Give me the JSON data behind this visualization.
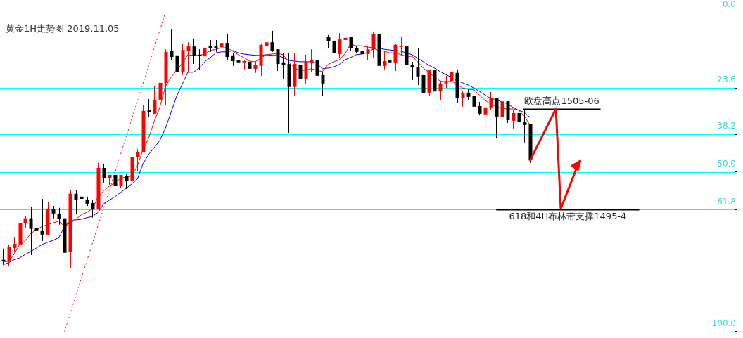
{
  "chart_data": {
    "type": "candlestick",
    "title": "黄金1H走势图 2019.11.05",
    "categories": [
      null,
      null,
      null,
      null,
      null,
      null,
      null,
      null,
      null,
      null,
      null,
      null,
      null,
      null,
      null,
      null,
      null,
      null,
      null,
      null,
      null,
      null,
      null,
      null,
      null,
      null,
      null,
      null,
      null,
      null,
      null,
      null,
      null,
      null,
      null,
      null,
      null,
      null,
      null,
      null,
      null,
      null,
      null,
      null,
      null,
      null,
      null,
      null,
      null,
      null,
      null,
      null,
      null,
      null,
      null,
      null,
      null,
      null,
      null,
      null,
      null,
      null,
      null,
      null,
      null,
      null,
      null,
      null,
      null,
      null,
      null,
      null,
      null,
      null,
      null,
      null,
      null,
      null,
      null,
      null,
      null,
      null,
      null,
      null,
      null,
      null,
      null,
      null,
      null,
      null,
      null,
      null,
      null,
      null,
      null
    ],
    "ohlc": [
      [
        77.5,
        78.9,
        74.0,
        78.0
      ],
      [
        78.0,
        79.5,
        72.7,
        73.6
      ],
      [
        73.8,
        75.3,
        70.3,
        72.5
      ],
      [
        72.7,
        76.9,
        63.7,
        66.1
      ],
      [
        66.1,
        67.4,
        63.7,
        64.5
      ],
      [
        64.5,
        76.0,
        61.0,
        67.8
      ],
      [
        67.6,
        75.6,
        64.5,
        68.5
      ],
      [
        68.5,
        71.6,
        58.4,
        69.6
      ],
      [
        69.6,
        69.6,
        59.3,
        61.5
      ],
      [
        61.5,
        64.5,
        60.6,
        63.0
      ],
      [
        63.0,
        66.5,
        61.2,
        64.8
      ],
      [
        64.5,
        100,
        64.5,
        75.3
      ],
      [
        75.1,
        80.2,
        55.7,
        56.8
      ],
      [
        56.8,
        63.2,
        55.7,
        58.6
      ],
      [
        57.7,
        64.3,
        57.5,
        58.4
      ],
      [
        58.6,
        60.6,
        57.7,
        59.9
      ],
      [
        59.7,
        64.3,
        58.6,
        61.7
      ],
      [
        61.7,
        61.7,
        47.1,
        48.7
      ],
      [
        48.7,
        53.3,
        47.4,
        51.8
      ],
      [
        51.8,
        54.0,
        50.9,
        50.9
      ],
      [
        50.9,
        56.4,
        50.9,
        54.4
      ],
      [
        54.4,
        55.1,
        50.9,
        50.9
      ],
      [
        51.3,
        55.3,
        50.7,
        52.9
      ],
      [
        52.9,
        52.9,
        44.7,
        45.4
      ],
      [
        45.2,
        49.6,
        42.7,
        43.6
      ],
      [
        43.8,
        43.8,
        28.9,
        30.8
      ],
      [
        30.6,
        32.8,
        27.1,
        31.3
      ],
      [
        31.7,
        31.7,
        23.1,
        27.3
      ],
      [
        27.3,
        33.0,
        17.6,
        22.0
      ],
      [
        22.0,
        29.1,
        11.5,
        12.3
      ],
      [
        12.1,
        14.8,
        5.1,
        13.9
      ],
      [
        13.4,
        22.7,
        9.9,
        18.5
      ],
      [
        18.5,
        19.6,
        9.7,
        11.7
      ],
      [
        11.9,
        18.7,
        9.3,
        10.6
      ],
      [
        10.6,
        16.1,
        8.1,
        13.4
      ],
      [
        13.2,
        18.1,
        11.5,
        13.4
      ],
      [
        13.7,
        13.9,
        8.6,
        11.0
      ],
      [
        10.4,
        12.3,
        8.6,
        11.0
      ],
      [
        10.6,
        12.3,
        8.6,
        11.0
      ],
      [
        10.8,
        13.0,
        9.3,
        9.5
      ],
      [
        9.5,
        15.0,
        6.6,
        13.9
      ],
      [
        13.4,
        16.7,
        12.6,
        15.2
      ],
      [
        15.0,
        16.7,
        13.0,
        15.6
      ],
      [
        15.6,
        17.8,
        15.0,
        15.2
      ],
      [
        15.4,
        19.2,
        14.3,
        17.6
      ],
      [
        17.6,
        18.9,
        15.4,
        16.5
      ],
      [
        16.7,
        19.8,
        9.9,
        10.1
      ],
      [
        10.4,
        12.1,
        3.3,
        9.3
      ],
      [
        9.3,
        12.3,
        5.7,
        11.9
      ],
      [
        11.5,
        18.3,
        11.5,
        16.1
      ],
      [
        15.6,
        20.7,
        12.6,
        16.3
      ],
      [
        16.1,
        37.7,
        12.6,
        23.3
      ],
      [
        23.3,
        26.2,
        12.8,
        16.1
      ],
      [
        16.3,
        25.1,
        0,
        20.7
      ],
      [
        20.7,
        22.2,
        13.2,
        15.4
      ],
      [
        15.9,
        18.7,
        11.5,
        15.0
      ],
      [
        15.0,
        25.3,
        13.2,
        19.8
      ],
      [
        19.6,
        26.0,
        18.5,
        22.2
      ],
      [
        7.7,
        11.0,
        7.0,
        9.0
      ],
      [
        8.8,
        13.4,
        7.5,
        12.6
      ],
      [
        13.0,
        14.3,
        6.4,
        8.4
      ],
      [
        8.6,
        10.8,
        6.4,
        7.9
      ],
      [
        7.7,
        11.9,
        7.7,
        11.2
      ],
      [
        11.0,
        12.6,
        10.4,
        12.3
      ],
      [
        12.1,
        16.5,
        11.5,
        13.0
      ],
      [
        13.0,
        15.0,
        10.4,
        11.5
      ],
      [
        11.5,
        14.1,
        6.2,
        6.8
      ],
      [
        6.8,
        21.6,
        5.7,
        16.7
      ],
      [
        16.7,
        17.8,
        12.1,
        15.2
      ],
      [
        15.0,
        20.9,
        14.3,
        15.6
      ],
      [
        15.9,
        18.3,
        9.7,
        10.1
      ],
      [
        10.8,
        13.4,
        7.7,
        10.4
      ],
      [
        10.4,
        18.5,
        3.1,
        16.5
      ],
      [
        16.3,
        21.1,
        15.4,
        17.2
      ],
      [
        17.0,
        22.7,
        11.0,
        20.0
      ],
      [
        19.6,
        33.3,
        19.6,
        25.1
      ],
      [
        25.1,
        26.0,
        18.1,
        18.1
      ],
      [
        18.1,
        24.7,
        18.1,
        24.7
      ],
      [
        24.7,
        27.3,
        21.4,
        22.2
      ],
      [
        22.2,
        23.6,
        19.8,
        21.4
      ],
      [
        21.4,
        22.0,
        15.0,
        18.5
      ],
      [
        18.9,
        28.2,
        17.8,
        26.7
      ],
      [
        26.7,
        29.5,
        24.7,
        25.3
      ],
      [
        25.1,
        27.5,
        23.8,
        26.4
      ],
      [
        26.2,
        31.7,
        23.8,
        29.5
      ],
      [
        29.3,
        32.2,
        28.0,
        31.7
      ],
      [
        31.9,
        32.2,
        29.1,
        29.7
      ],
      [
        29.7,
        30.6,
        24.9,
        26.9
      ],
      [
        26.9,
        39.4,
        26.9,
        32.6
      ],
      [
        32.8,
        33.0,
        23.8,
        27.8
      ],
      [
        27.8,
        34.6,
        27.8,
        33.7
      ],
      [
        33.9,
        36.3,
        30.6,
        31.5
      ],
      [
        31.5,
        36.1,
        30.6,
        34.4
      ],
      [
        34.4,
        40.7,
        30.6,
        35.2
      ],
      [
        35.0,
        47.1,
        35.0,
        46.3
      ]
    ],
    "colors": [
      "#000000",
      "#ff0000",
      "#ff0000",
      "#ff0000",
      "#ff0000",
      "#000000",
      "#000000",
      "#000000",
      "#ff0000",
      "#000000",
      "#000000",
      "#000000",
      "#ff0000",
      "#000000",
      "#000000",
      "#000000",
      "#000000",
      "#ff0000",
      "#000000",
      "#ff0000",
      "#000000",
      "#ff0000",
      "#000000",
      "#ff0000",
      "#ff0000",
      "#ff0000",
      "#000000",
      "#ff0000",
      "#ff0000",
      "#ff0000",
      "#000000",
      "#000000",
      "#ff0000",
      "#ff0000",
      "#000000",
      "#000000",
      "#ff0000",
      "#000000",
      "#000000",
      "#ff0000",
      "#000000",
      "#000000",
      "#000000",
      "#ff0000",
      "#000000",
      "#ff0000",
      "#ff0000",
      "#ff0000",
      "#000000",
      "#000000",
      "#000000",
      "#000000",
      "#ff0000",
      "#000000",
      "#ff0000",
      "#ff0000",
      "#000000",
      "#000000",
      "#000000",
      "#000000",
      "#ff0000",
      "#ff0000",
      "#000000",
      "#000000",
      "#000000",
      "#ff0000",
      "#ff0000",
      "#000000",
      "#ff0000",
      "#000000",
      "#ff0000",
      "#ff0000",
      "#000000",
      "#000000",
      "#000000",
      "#000000",
      "#ff0000",
      "#000000",
      "#ff0000",
      "#ff0000",
      "#ff0000",
      "#000000",
      "#ff0000",
      "#000000",
      "#000000",
      "#000000",
      "#ff0000",
      "#ff0000",
      "#000000",
      "#ff0000",
      "#000000",
      "#ff0000",
      "#000000",
      "#000000",
      "#000000"
    ],
    "series": [
      {
        "type": "line",
        "color": "#ff0000",
        "values": [
          78.2,
          78.0,
          75.8,
          72.7,
          71.6,
          69.2,
          68.1,
          67.0,
          66.5,
          65.9,
          65.4,
          67.0,
          65.4,
          64.8,
          63.4,
          62.6,
          61.5,
          57.7,
          55.9,
          54.4,
          53.3,
          52.0,
          51.5,
          51.3,
          48.0,
          43.0,
          39.4,
          34.1,
          29.7,
          23.1,
          20.3,
          18.1,
          15.9,
          13.2,
          13.4,
          13.4,
          13.0,
          11.9,
          11.5,
          11.0,
          11.0,
          12.1,
          13.2,
          14.1,
          15.2,
          15.4,
          14.3,
          13.2,
          13.0,
          12.8,
          13.2,
          15.4,
          17.4,
          18.1,
          18.1,
          17.6,
          18.1,
          18.5,
          16.3,
          15.4,
          14.8,
          13.0,
          9.9,
          10.4,
          10.4,
          10.8,
          11.0,
          11.9,
          12.1,
          12.6,
          12.6,
          13.2,
          13.7,
          13.7,
          15.4,
          17.4,
          18.7,
          20.3,
          21.4,
          21.8,
          21.4,
          22.5,
          23.6,
          24.0,
          24.2,
          25.8,
          27.5,
          28.6,
          29.5,
          30.0,
          30.2,
          30.2,
          30.6,
          32.4,
          35.2
        ]
      },
      {
        "type": "line",
        "color": "#0000ff",
        "values": [
          79.1,
          78.4,
          77.5,
          76.9,
          75.8,
          74.9,
          73.8,
          72.7,
          72.0,
          71.4,
          70.5,
          67.2,
          65.9,
          65.0,
          64.8,
          64.3,
          63.9,
          62.6,
          59.9,
          58.8,
          57.7,
          56.4,
          55.1,
          53.7,
          52.2,
          47.4,
          44.5,
          42.3,
          40.1,
          36.3,
          31.3,
          26.2,
          22.5,
          18.7,
          18.7,
          17.4,
          15.4,
          14.1,
          12.6,
          12.3,
          12.3,
          11.9,
          12.6,
          13.0,
          13.2,
          13.4,
          13.4,
          13.2,
          13.4,
          13.4,
          14.1,
          15.0,
          15.2,
          15.4,
          15.4,
          15.4,
          15.9,
          17.6,
          17.4,
          17.0,
          16.3,
          14.8,
          14.1,
          13.2,
          13.0,
          12.6,
          11.5,
          11.0,
          11.5,
          11.7,
          11.9,
          12.1,
          12.6,
          13.2,
          14.3,
          15.4,
          16.5,
          17.4,
          18.5,
          19.4,
          20.3,
          21.4,
          22.0,
          22.7,
          23.6,
          24.7,
          25.8,
          26.9,
          27.3,
          28.0,
          28.6,
          29.7,
          30.6,
          31.3,
          32.8
        ]
      },
      {
        "type": "line",
        "color": "#ff0000",
        "line_style": "dotted",
        "values": [
          null,
          null,
          null,
          null,
          null,
          null,
          null,
          null,
          null,
          null,
          null,
          100,
          null,
          null,
          null,
          null,
          null,
          null,
          null,
          null,
          null,
          null,
          null,
          null,
          null,
          null,
          null,
          null,
          null,
          0,
          null,
          null,
          null,
          null,
          null,
          null,
          null,
          null,
          null,
          null,
          null,
          null,
          null,
          null,
          null,
          null,
          null,
          null,
          null,
          null,
          null,
          null,
          null,
          null,
          null,
          null,
          null,
          null,
          null,
          null,
          null,
          null,
          null,
          null,
          null,
          null,
          null,
          null,
          null,
          null,
          null,
          null,
          null,
          null,
          null,
          null,
          null,
          null,
          null,
          null,
          null,
          null,
          null,
          null,
          null,
          null,
          null,
          null,
          null,
          null,
          null,
          null,
          null,
          null,
          null
        ]
      }
    ],
    "ylim": [
      100,
      0
    ],
    "grid": "y",
    "yticks": [
      {
        "value": 0,
        "label": "0.0"
      },
      23.6,
      38.2,
      {
        "value": 50,
        "label": "50.0"
      },
      61.8,
      {
        "value": 100,
        "label": "100.0"
      }
    ],
    "ref_lines": [
      {
        "axis": "y",
        "value": 30.2,
        "color": "#000000",
        "label": "欧盘高点1505-06"
      },
      {
        "axis": "y",
        "value": 61.8,
        "color": "#000000",
        "label": "618和4H布林带支撑1495-4"
      }
    ],
    "tick_labels": "y",
    "legend": false
  }
}
